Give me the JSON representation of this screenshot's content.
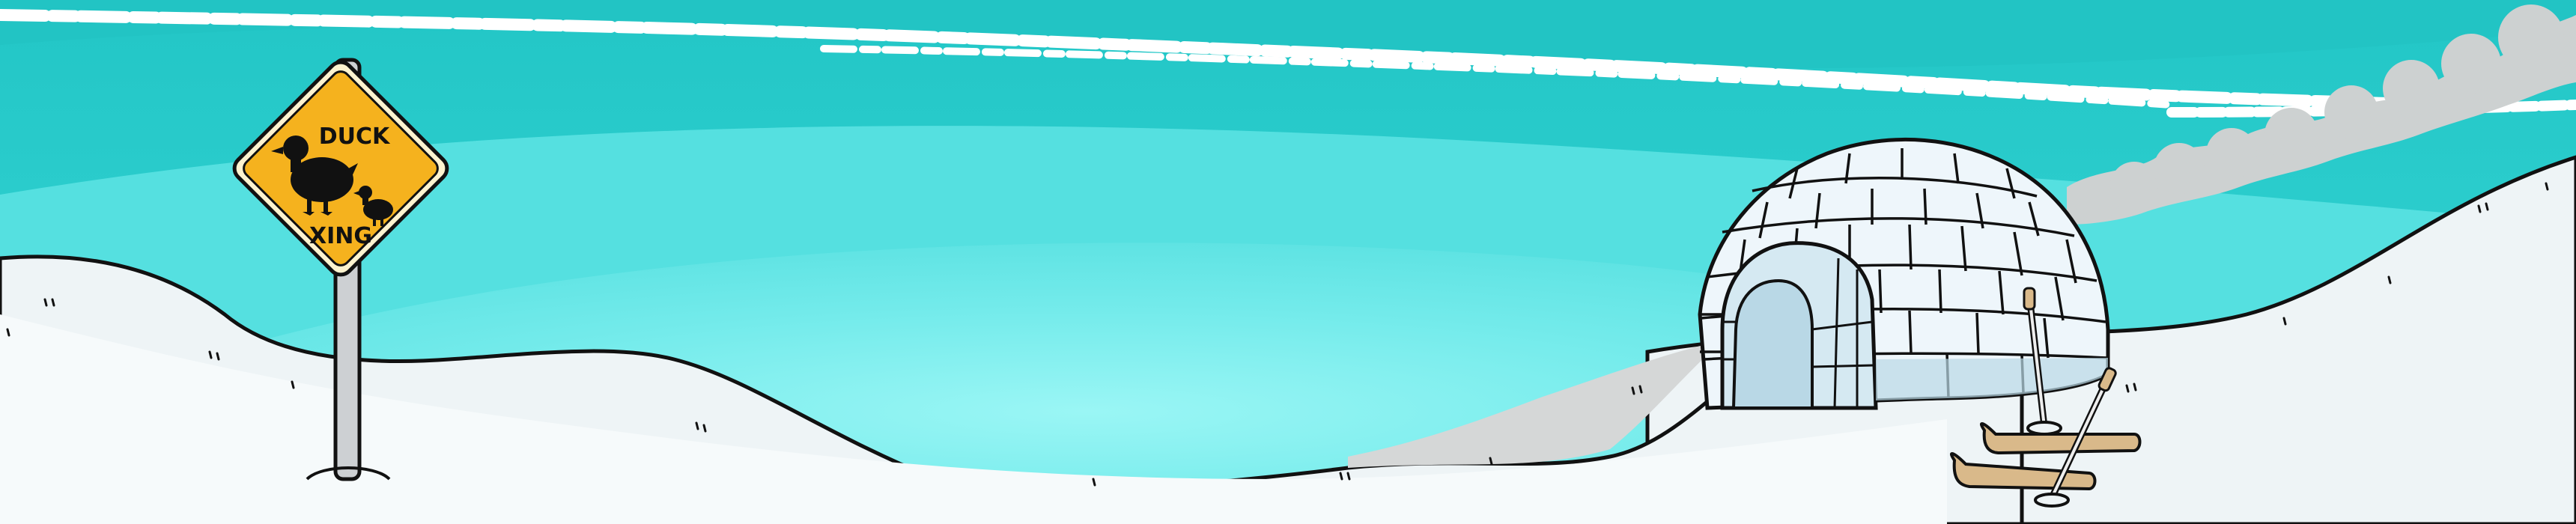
{
  "scene": {
    "sign": {
      "line1": "DUCK",
      "line2": "XING",
      "icon": "duck-crossing-icon"
    },
    "colors": {
      "sky_deep": "#22c6c6",
      "sky_mid": "#3ddada",
      "sky_light": "#6eeaea",
      "sky_glow": "#8ff3f2",
      "snow": "#eef4f6",
      "snow_bright": "#f8fbfc",
      "snow_shadow": "#d6d8d8",
      "smoke": "#cfd2d2",
      "igloo_block": "#eef6fb",
      "igloo_shade": "#b9d8e6",
      "sign_yellow": "#f5b21e",
      "sign_border": "#fdf3cf",
      "ski_wood": "#d9b98a",
      "outline": "#111111"
    }
  }
}
